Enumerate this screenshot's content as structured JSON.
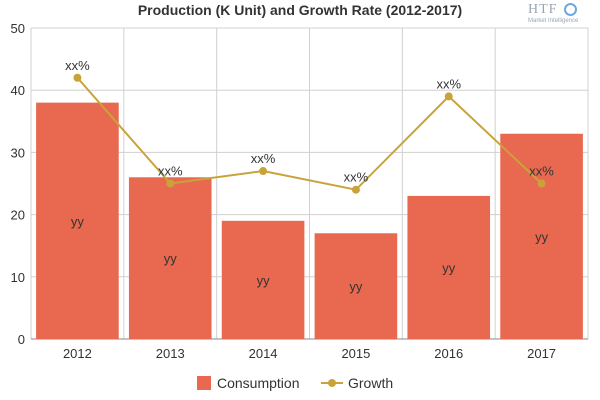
{
  "chart_data": {
    "type": "bar",
    "title": "Production (K Unit) and Growth Rate (2012-2017)",
    "categories": [
      "2012",
      "2013",
      "2014",
      "2015",
      "2016",
      "2017"
    ],
    "ylim": [
      0,
      50
    ],
    "yticks": [
      0,
      10,
      20,
      30,
      40,
      50
    ],
    "grid": true,
    "legend_position": "bottom",
    "series": [
      {
        "name": "Consumption",
        "type": "bar",
        "color": "#e8694f",
        "values": [
          38,
          26,
          19,
          17,
          23,
          33
        ],
        "labels": [
          "yy",
          "yy",
          "yy",
          "yy",
          "yy",
          "yy"
        ]
      },
      {
        "name": "Growth",
        "type": "line",
        "color": "#c9a33a",
        "values": [
          42,
          25,
          27,
          24,
          39,
          25
        ],
        "labels": [
          "xx%",
          "xx%",
          "xx%",
          "xx%",
          "xx%",
          "xx%"
        ]
      }
    ]
  },
  "logo": {
    "text": "HTF",
    "subtext": "Market Intelligence"
  }
}
